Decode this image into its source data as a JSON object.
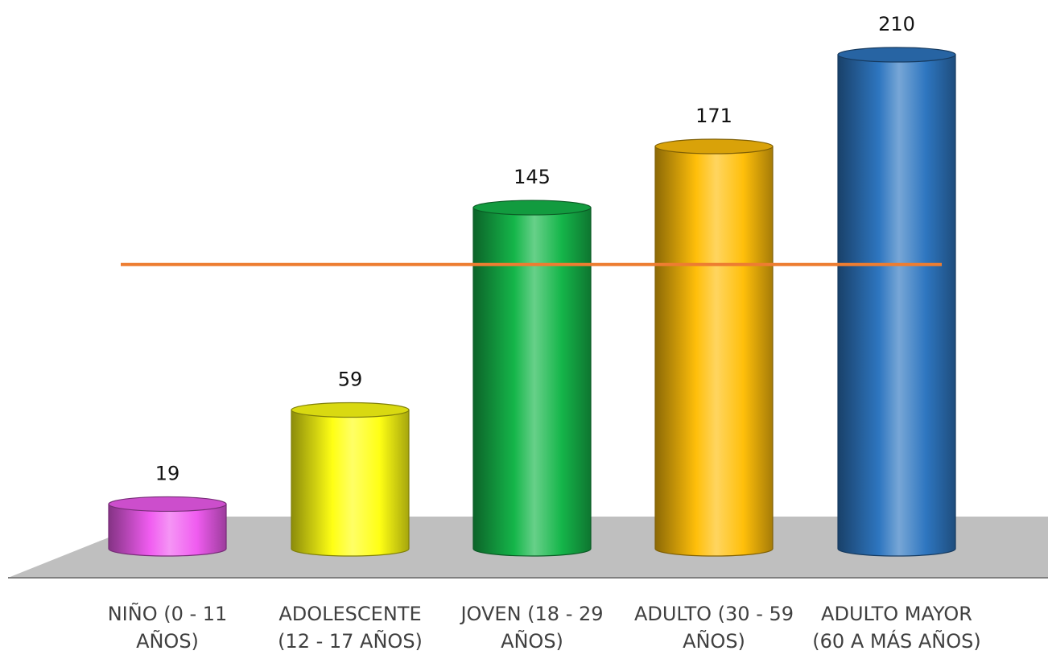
{
  "chart_data": {
    "type": "bar",
    "categories": [
      "NIÑO (0 - 11\nAÑOS)",
      "ADOLESCENTE\n(12 - 17 AÑOS)",
      "JOVEN (18 - 29\nAÑOS)",
      "ADULTO (30 - 59\nAÑOS)",
      "ADULTO MAYOR\n(60 A MÁS AÑOS)"
    ],
    "values": [
      19,
      59,
      145,
      171,
      210
    ],
    "value_labels": [
      "19",
      "59",
      "145",
      "171",
      "210"
    ],
    "reference_line": 120.8,
    "ylim": [
      0,
      210
    ],
    "grid": false,
    "legend": "none",
    "colors": {
      "bars": [
        "#f05cf0",
        "#ffff14",
        "#15b64a",
        "#ffbf0a",
        "#2e76c0"
      ],
      "reference_line": "#ed7d31",
      "floor": "#bfbfbf",
      "value_text": "#111111",
      "category_text": "#404040"
    }
  }
}
